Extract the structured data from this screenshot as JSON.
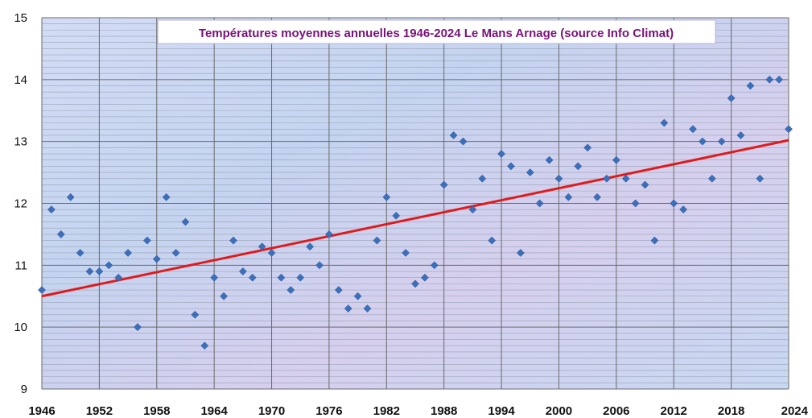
{
  "chart_data": {
    "type": "scatter",
    "title": "Températures moyennes annuelles 1946-2024 Le Mans Arnage (source Info Climat)",
    "xlabel": "",
    "ylabel": "",
    "xlim": [
      1946,
      2024
    ],
    "ylim": [
      9,
      15
    ],
    "x_ticks": [
      "1946",
      "1952",
      "1958",
      "1964",
      "1970",
      "1976",
      "1982",
      "1988",
      "1994",
      "2000",
      "2006",
      "2012",
      "2018",
      "2024"
    ],
    "y_ticks": [
      "9",
      "10",
      "11",
      "12",
      "13",
      "14",
      "15"
    ],
    "grid": true,
    "legend": "none",
    "colors": {
      "marker": "#3d6fb8",
      "trendline": "#e01b1b",
      "plot_bg": "#c9d6f2",
      "major_grid": "#6a6a6a",
      "minor_grid": "#9aa3b5"
    },
    "series": [
      {
        "marker": "diamond",
        "points": [
          [
            1946,
            10.6
          ],
          [
            1947,
            11.9
          ],
          [
            1948,
            11.5
          ],
          [
            1949,
            12.1
          ],
          [
            1950,
            11.2
          ],
          [
            1951,
            10.9
          ],
          [
            1952,
            10.9
          ],
          [
            1953,
            11.0
          ],
          [
            1954,
            10.8
          ],
          [
            1955,
            11.2
          ],
          [
            1956,
            10.0
          ],
          [
            1957,
            11.4
          ],
          [
            1958,
            11.1
          ],
          [
            1959,
            12.1
          ],
          [
            1960,
            11.2
          ],
          [
            1961,
            11.7
          ],
          [
            1962,
            10.2
          ],
          [
            1963,
            9.7
          ],
          [
            1964,
            10.8
          ],
          [
            1965,
            10.5
          ],
          [
            1966,
            11.4
          ],
          [
            1967,
            10.9
          ],
          [
            1968,
            10.8
          ],
          [
            1969,
            11.3
          ],
          [
            1970,
            11.2
          ],
          [
            1971,
            10.8
          ],
          [
            1972,
            10.6
          ],
          [
            1973,
            10.8
          ],
          [
            1974,
            11.3
          ],
          [
            1975,
            11.0
          ],
          [
            1976,
            11.5
          ],
          [
            1977,
            10.6
          ],
          [
            1978,
            10.3
          ],
          [
            1979,
            10.5
          ],
          [
            1980,
            10.3
          ],
          [
            1981,
            11.4
          ],
          [
            1982,
            12.1
          ],
          [
            1983,
            11.8
          ],
          [
            1984,
            11.2
          ],
          [
            1985,
            10.7
          ],
          [
            1986,
            10.8
          ],
          [
            1987,
            11.0
          ],
          [
            1988,
            12.3
          ],
          [
            1989,
            13.1
          ],
          [
            1990,
            13.0
          ],
          [
            1991,
            11.9
          ],
          [
            1992,
            12.4
          ],
          [
            1993,
            11.4
          ],
          [
            1994,
            12.8
          ],
          [
            1995,
            12.6
          ],
          [
            1996,
            11.2
          ],
          [
            1997,
            12.5
          ],
          [
            1998,
            12.0
          ],
          [
            1999,
            12.7
          ],
          [
            2000,
            12.4
          ],
          [
            2001,
            12.1
          ],
          [
            2002,
            12.6
          ],
          [
            2003,
            12.9
          ],
          [
            2004,
            12.1
          ],
          [
            2005,
            12.4
          ],
          [
            2006,
            12.7
          ],
          [
            2007,
            12.4
          ],
          [
            2008,
            12.0
          ],
          [
            2009,
            12.3
          ],
          [
            2010,
            11.4
          ],
          [
            2011,
            13.3
          ],
          [
            2012,
            12.0
          ],
          [
            2013,
            11.9
          ],
          [
            2014,
            13.2
          ],
          [
            2015,
            13.0
          ],
          [
            2016,
            12.4
          ],
          [
            2017,
            13.0
          ],
          [
            2018,
            13.7
          ],
          [
            2019,
            13.1
          ],
          [
            2020,
            13.9
          ],
          [
            2021,
            12.4
          ],
          [
            2022,
            14.0
          ],
          [
            2023,
            14.0
          ],
          [
            2024,
            13.2
          ]
        ]
      }
    ],
    "trendline": {
      "type": "linear",
      "start": [
        1946,
        10.5
      ],
      "end": [
        2024,
        13.02
      ]
    }
  }
}
